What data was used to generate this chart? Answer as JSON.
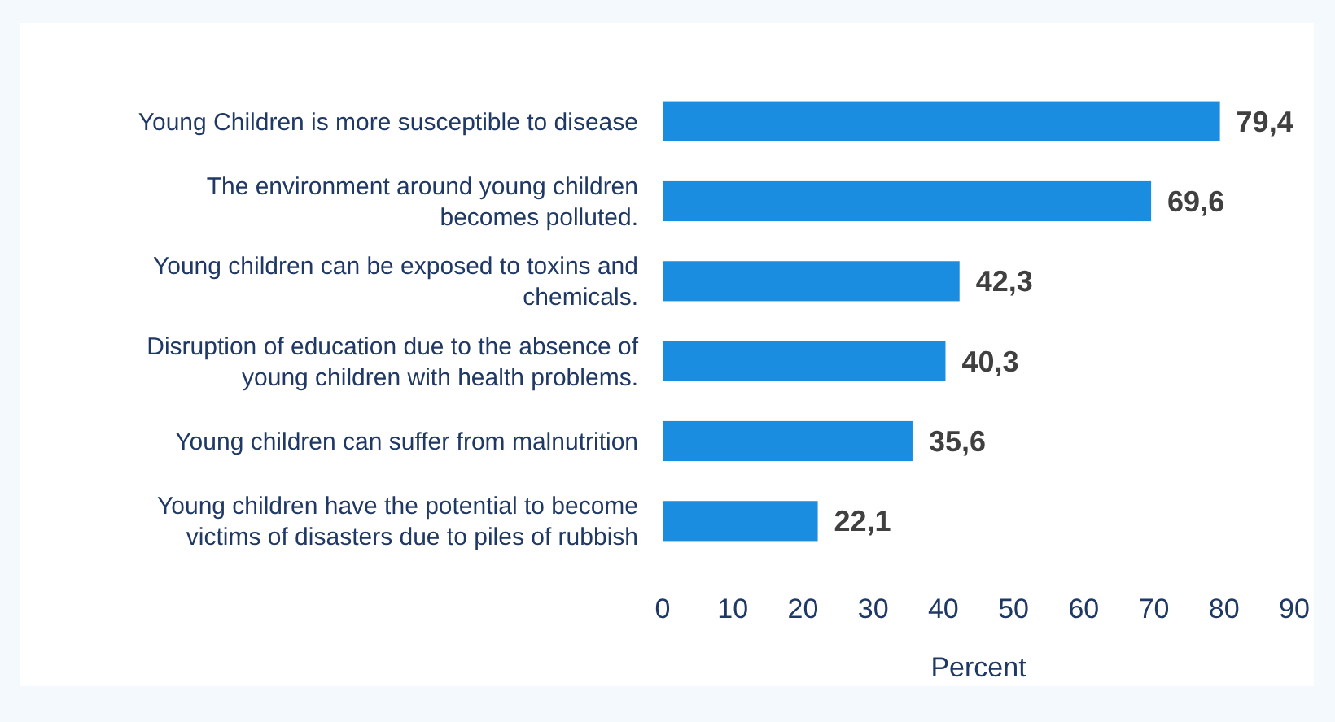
{
  "chart_data": {
    "type": "bar",
    "orientation": "horizontal",
    "xlabel": "Percent",
    "categories": [
      "Young Children is more susceptible to disease",
      "The environment around young children\nbecomes polluted.",
      "Young children can be exposed to toxins and\nchemicals.",
      "Disruption of education due to the absence of\nyoung children with health problems.",
      "Young children can suffer from malnutrition",
      "Young children have the potential to become\nvictims of disasters due to piles of rubbish"
    ],
    "values": [
      79.4,
      69.6,
      42.3,
      40.3,
      35.6,
      22.1
    ],
    "value_labels": [
      "79,4",
      "69,6",
      "42,3",
      "40,3",
      "35,6",
      "22,1"
    ],
    "color": "#1b8de0",
    "xlim": [
      0,
      90
    ],
    "xticks": [
      0,
      10,
      20,
      30,
      40,
      50,
      60,
      70,
      80,
      90
    ],
    "grid": false
  }
}
